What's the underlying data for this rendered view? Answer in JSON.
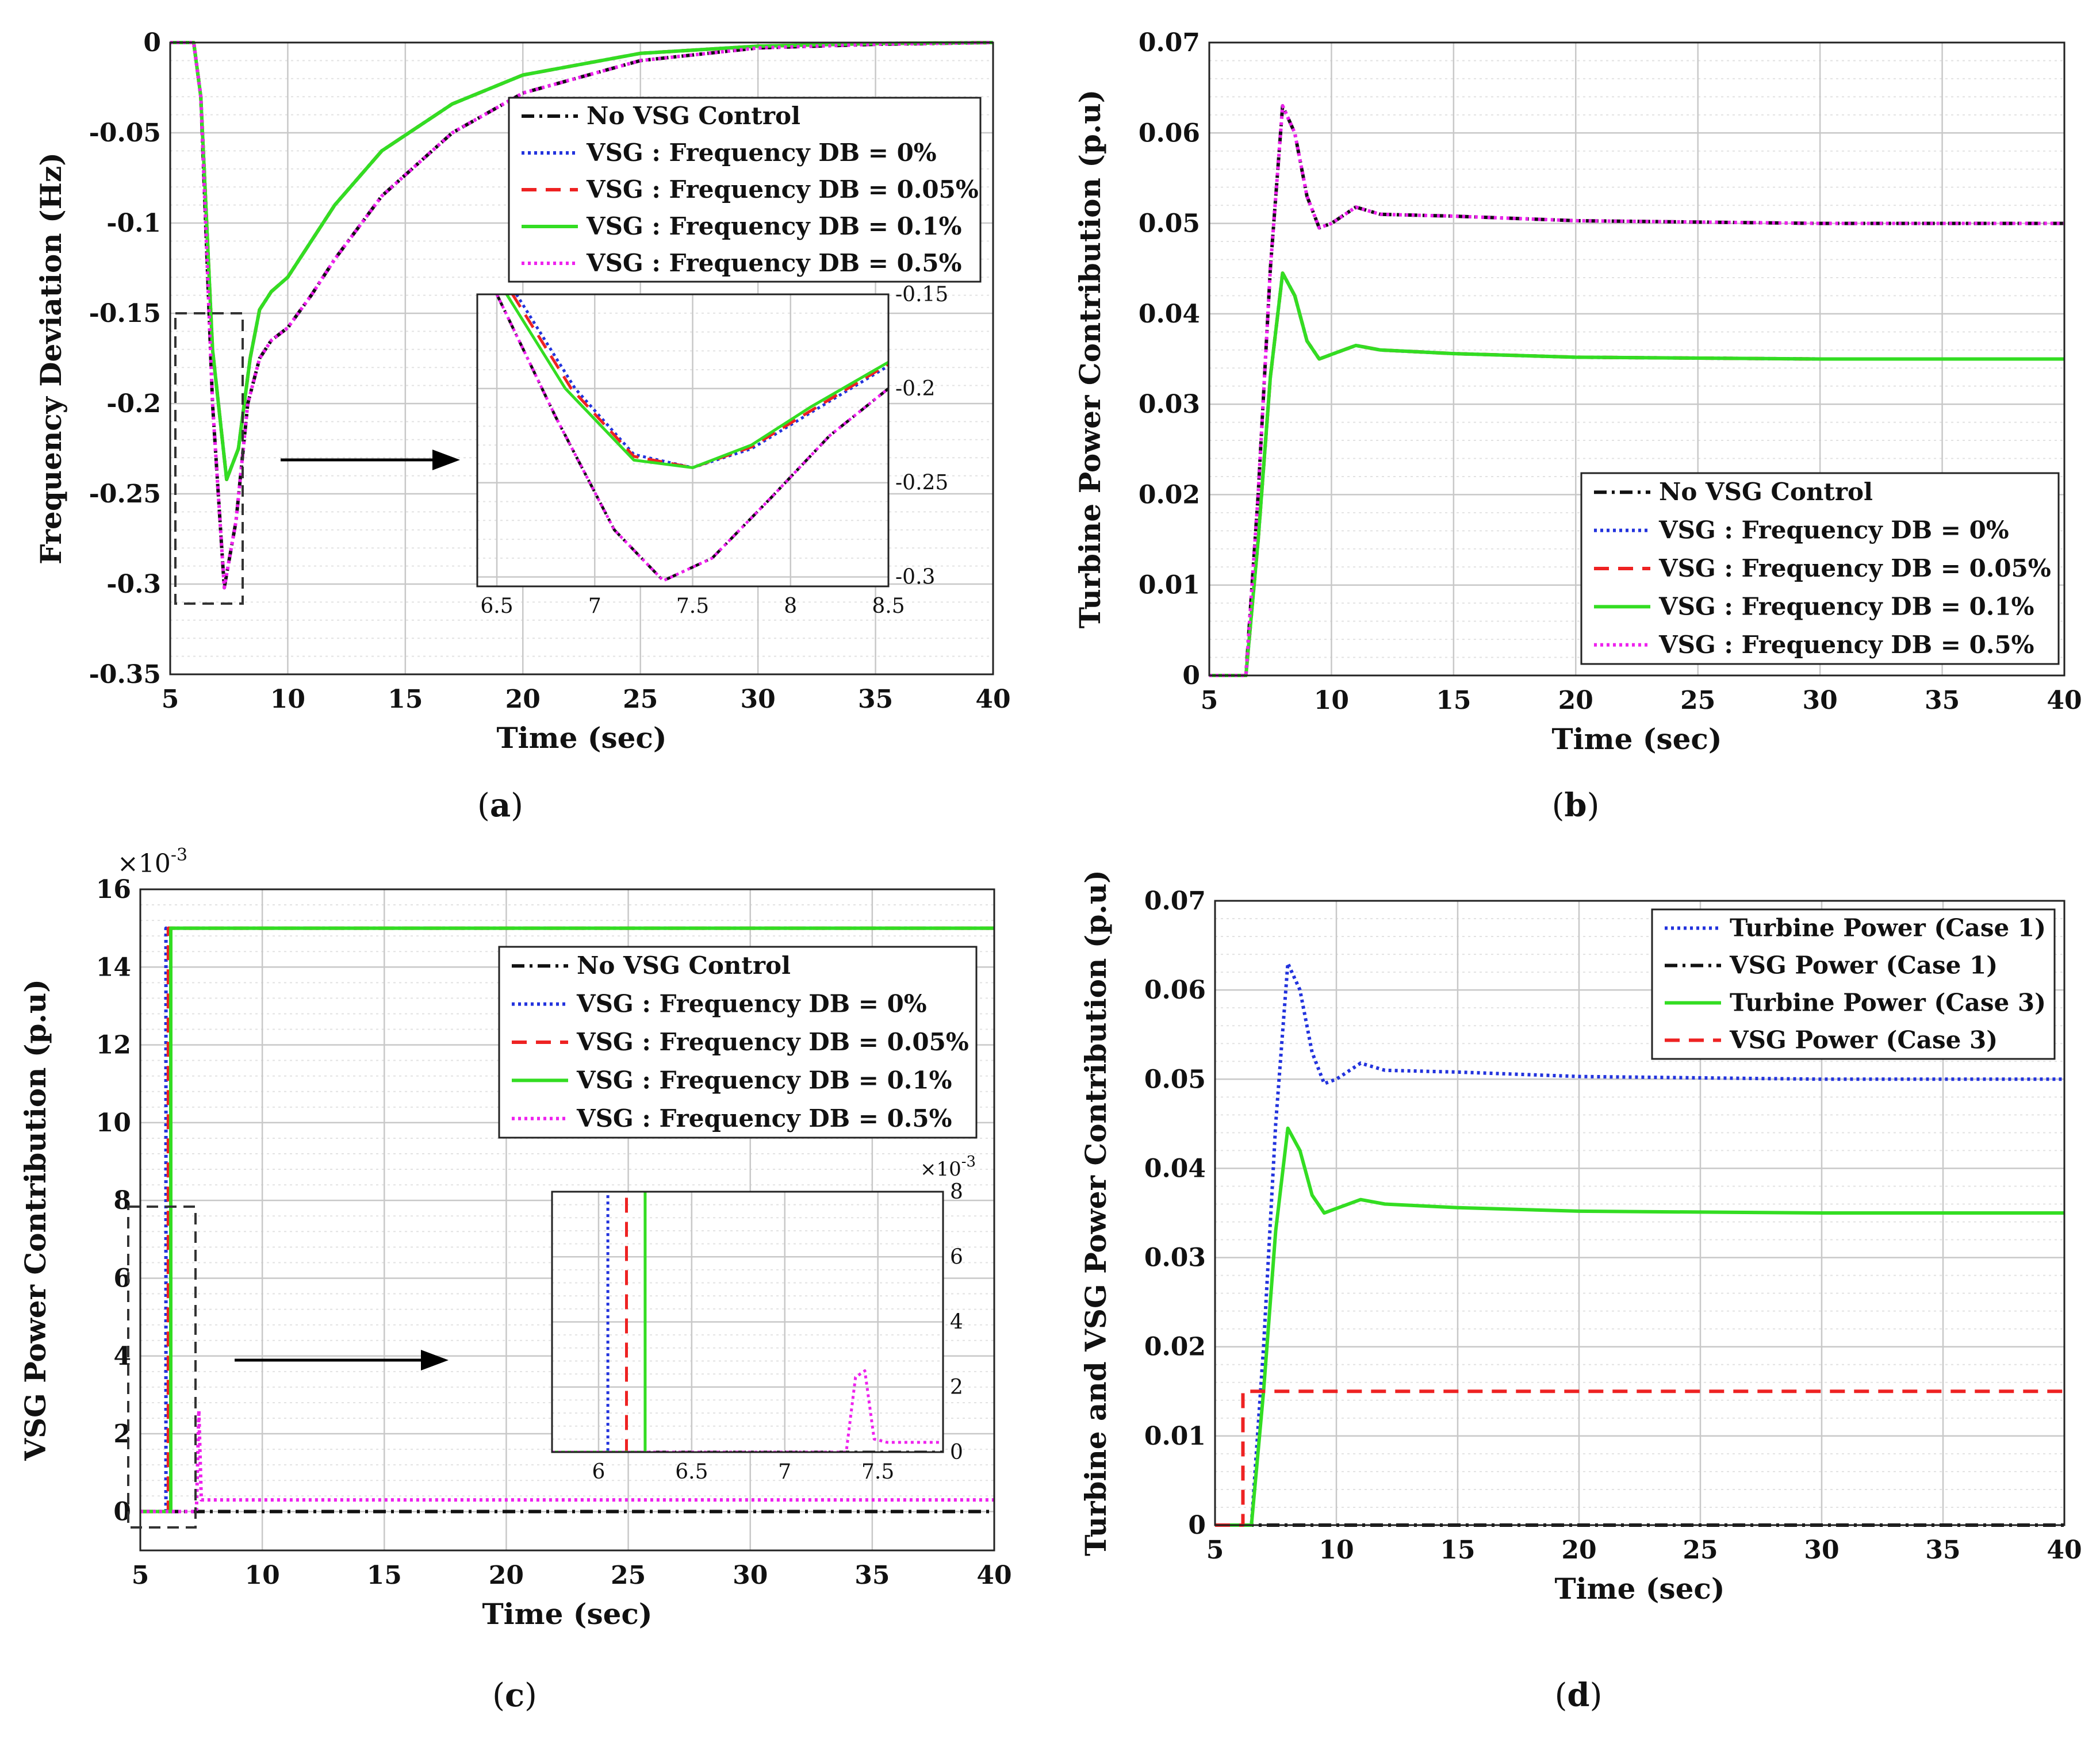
{
  "colors": {
    "no_vsg": "#111111",
    "db0": "#2233dd",
    "db005": "#ee2222",
    "db01": "#33dd22",
    "db05": "#ee22ee",
    "grid": "#c8c8c8",
    "minor_grid": "#e2e2e2"
  },
  "chart_data": [
    {
      "id": "a",
      "type": "line",
      "caption": {
        "open": "(",
        "letter": "a",
        "close": ")"
      },
      "xlabel": "Time (sec)",
      "ylabel": "Frequency Deviation (Hz)",
      "xlim": [
        5,
        40
      ],
      "ylim": [
        -0.35,
        0
      ],
      "xticks": [
        "5",
        "10",
        "15",
        "20",
        "25",
        "30",
        "35",
        "40"
      ],
      "yticks": [
        "0",
        "-0.05",
        "-0.1",
        "-0.15",
        "-0.2",
        "-0.25",
        "-0.3",
        "-0.35"
      ],
      "legend": [
        "No VSG Control",
        "VSG : Frequency DB =  0%",
        "VSG : Frequency DB =  0.05%",
        "VSG : Frequency DB =  0.1%",
        "VSG : Frequency DB =  0.5%"
      ],
      "series": [
        {
          "name": "No VSG Control",
          "style": "dashdot",
          "color": "#111111",
          "x": [
            5,
            6,
            6.3,
            6.8,
            7.3,
            7.8,
            8.3,
            8.8,
            9.3,
            10,
            11,
            12,
            14,
            17,
            20,
            25,
            30,
            35,
            40
          ],
          "y": [
            0,
            0,
            -0.03,
            -0.2,
            -0.302,
            -0.265,
            -0.2,
            -0.175,
            -0.165,
            -0.158,
            -0.14,
            -0.12,
            -0.085,
            -0.05,
            -0.028,
            -0.01,
            -0.003,
            -0.001,
            0
          ]
        },
        {
          "name": "VSG : Frequency DB =  0%",
          "style": "dotted",
          "color": "#2233dd",
          "x": [
            5,
            6,
            6.3,
            6.8,
            7.4,
            7.9,
            8.4,
            8.8,
            9.3,
            10,
            11,
            12,
            14,
            17,
            20,
            25,
            30,
            35,
            40
          ],
          "y": [
            0,
            0,
            -0.03,
            -0.17,
            -0.242,
            -0.225,
            -0.175,
            -0.148,
            -0.138,
            -0.13,
            -0.11,
            -0.09,
            -0.06,
            -0.034,
            -0.018,
            -0.006,
            -0.002,
            -0.0005,
            0
          ]
        },
        {
          "name": "VSG : Frequency DB =  0.05%",
          "style": "dashed",
          "color": "#ee2222",
          "x": [
            5,
            6,
            6.3,
            6.8,
            7.4,
            7.9,
            8.4,
            8.8,
            9.3,
            10,
            11,
            12,
            14,
            17,
            20,
            25,
            30,
            35,
            40
          ],
          "y": [
            0,
            0,
            -0.03,
            -0.17,
            -0.242,
            -0.225,
            -0.175,
            -0.148,
            -0.138,
            -0.13,
            -0.11,
            -0.09,
            -0.06,
            -0.034,
            -0.018,
            -0.006,
            -0.002,
            -0.0005,
            0
          ]
        },
        {
          "name": "VSG : Frequency DB =  0.1%",
          "style": "solid",
          "color": "#33dd22",
          "x": [
            5,
            6,
            6.3,
            6.8,
            7.4,
            7.9,
            8.4,
            8.8,
            9.3,
            10,
            11,
            12,
            14,
            17,
            20,
            25,
            30,
            35,
            40
          ],
          "y": [
            0,
            0,
            -0.03,
            -0.17,
            -0.242,
            -0.225,
            -0.175,
            -0.148,
            -0.138,
            -0.13,
            -0.11,
            -0.09,
            -0.06,
            -0.034,
            -0.018,
            -0.006,
            -0.002,
            -0.0005,
            0
          ]
        },
        {
          "name": "VSG : Frequency DB =  0.5%",
          "style": "dotted",
          "color": "#ee22ee",
          "x": [
            5,
            6,
            6.3,
            6.8,
            7.3,
            7.8,
            8.3,
            8.8,
            9.3,
            10,
            11,
            12,
            14,
            17,
            20,
            25,
            30,
            35,
            40
          ],
          "y": [
            0,
            0,
            -0.03,
            -0.2,
            -0.302,
            -0.265,
            -0.2,
            -0.175,
            -0.165,
            -0.158,
            -0.14,
            -0.12,
            -0.085,
            -0.05,
            -0.028,
            -0.01,
            -0.003,
            -0.001,
            0
          ]
        }
      ],
      "inset": {
        "xlim": [
          6.4,
          8.5
        ],
        "ylim": [
          -0.305,
          -0.15
        ],
        "xticks": [
          "6.5",
          "7",
          "7.5",
          "8",
          "8.5"
        ],
        "yticks": [
          "-0.15",
          "-0.2",
          "-0.25",
          "-0.3"
        ],
        "series": [
          {
            "name": "No VSG Control",
            "x": [
              6.5,
              6.8,
              7.1,
              7.35,
              7.6,
              7.9,
              8.2,
              8.5
            ],
            "y": [
              -0.15,
              -0.215,
              -0.275,
              -0.302,
              -0.29,
              -0.258,
              -0.225,
              -0.2
            ]
          },
          {
            "name": "VSG : Frequency DB =  0%",
            "x": [
              6.6,
              6.9,
              7.2,
              7.5,
              7.8,
              8.1,
              8.5
            ],
            "y": [
              -0.15,
              -0.2,
              -0.235,
              -0.242,
              -0.232,
              -0.213,
              -0.188
            ]
          },
          {
            "name": "VSG : Frequency DB =  0.05%",
            "x": [
              6.58,
              6.88,
              7.2,
              7.5,
              7.8,
              8.1,
              8.5
            ],
            "y": [
              -0.15,
              -0.2,
              -0.236,
              -0.242,
              -0.231,
              -0.212,
              -0.187
            ]
          },
          {
            "name": "VSG : Frequency DB =  0.1%",
            "x": [
              6.55,
              6.85,
              7.2,
              7.5,
              7.8,
              8.1,
              8.5
            ],
            "y": [
              -0.15,
              -0.2,
              -0.238,
              -0.242,
              -0.23,
              -0.21,
              -0.186
            ]
          },
          {
            "name": "VSG : Frequency DB =  0.5%",
            "x": [
              6.5,
              6.8,
              7.1,
              7.35,
              7.6,
              7.9,
              8.2,
              8.5
            ],
            "y": [
              -0.15,
              -0.215,
              -0.275,
              -0.302,
              -0.29,
              -0.258,
              -0.225,
              -0.2
            ]
          }
        ]
      }
    },
    {
      "id": "b",
      "type": "line",
      "caption": {
        "open": "(",
        "letter": "b",
        "close": ")"
      },
      "xlabel": "Time (sec)",
      "ylabel": "Turbine Power Contribution (p.u)",
      "xlim": [
        5,
        40
      ],
      "ylim": [
        0,
        0.07
      ],
      "xticks": [
        "5",
        "10",
        "15",
        "20",
        "25",
        "30",
        "35",
        "40"
      ],
      "yticks": [
        "0",
        "0.01",
        "0.02",
        "0.03",
        "0.04",
        "0.05",
        "0.06",
        "0.07"
      ],
      "legend": [
        "No VSG Control",
        "VSG : Frequency DB =  0%",
        "VSG : Frequency DB =  0.05%",
        "VSG : Frequency DB =  0.1%",
        "VSG : Frequency DB =  0.5%"
      ],
      "series": [
        {
          "name": "No VSG Control",
          "style": "dashdot",
          "color": "#111111",
          "x": [
            5,
            6.5,
            7,
            7.5,
            8,
            8.5,
            9,
            9.5,
            10,
            11,
            12,
            15,
            20,
            30,
            40
          ],
          "y": [
            0,
            0,
            0.02,
            0.045,
            0.063,
            0.06,
            0.053,
            0.0495,
            0.05,
            0.0518,
            0.051,
            0.0508,
            0.0503,
            0.05,
            0.05
          ]
        },
        {
          "name": "VSG : Frequency DB =  0%",
          "style": "dotted",
          "color": "#2233dd",
          "x": [
            5,
            6.5,
            7,
            7.5,
            8,
            8.5,
            9,
            9.5,
            10,
            11,
            12,
            15,
            20,
            30,
            40
          ],
          "y": [
            0,
            0,
            0.015,
            0.033,
            0.0445,
            0.042,
            0.037,
            0.035,
            0.0355,
            0.0365,
            0.036,
            0.0356,
            0.0352,
            0.035,
            0.035
          ]
        },
        {
          "name": "VSG : Frequency DB =  0.05%",
          "style": "dashed",
          "color": "#ee2222",
          "x": [
            5,
            6.5,
            7,
            7.5,
            8,
            8.5,
            9,
            9.5,
            10,
            11,
            12,
            15,
            20,
            30,
            40
          ],
          "y": [
            0,
            0,
            0.015,
            0.033,
            0.0445,
            0.042,
            0.037,
            0.035,
            0.0355,
            0.0365,
            0.036,
            0.0356,
            0.0352,
            0.035,
            0.035
          ]
        },
        {
          "name": "VSG : Frequency DB =  0.1%",
          "style": "solid",
          "color": "#33dd22",
          "x": [
            5,
            6.5,
            7,
            7.5,
            8,
            8.5,
            9,
            9.5,
            10,
            11,
            12,
            15,
            20,
            30,
            40
          ],
          "y": [
            0,
            0,
            0.015,
            0.033,
            0.0445,
            0.042,
            0.037,
            0.035,
            0.0355,
            0.0365,
            0.036,
            0.0356,
            0.0352,
            0.035,
            0.035
          ]
        },
        {
          "name": "VSG : Frequency DB =  0.5%",
          "style": "dotted",
          "color": "#ee22ee",
          "x": [
            5,
            6.5,
            7,
            7.5,
            8,
            8.5,
            9,
            9.5,
            10,
            11,
            12,
            15,
            20,
            30,
            40
          ],
          "y": [
            0,
            0,
            0.02,
            0.045,
            0.063,
            0.06,
            0.053,
            0.0495,
            0.05,
            0.0518,
            0.051,
            0.0508,
            0.0503,
            0.05,
            0.05
          ]
        }
      ]
    },
    {
      "id": "c",
      "type": "line",
      "caption": {
        "open": "(",
        "letter": "c",
        "close": ")"
      },
      "xlabel": "Time (sec)",
      "ylabel": "VSG Power Contribution (p.u)",
      "exponent": {
        "base": "×10",
        "power": "-3"
      },
      "xlim": [
        5,
        40
      ],
      "ylim": [
        -1,
        16
      ],
      "xticks": [
        "5",
        "10",
        "15",
        "20",
        "25",
        "30",
        "35",
        "40"
      ],
      "yticks": [
        "0",
        "2",
        "4",
        "6",
        "8",
        "10",
        "12",
        "14",
        "16"
      ],
      "legend": [
        "No VSG Control",
        "VSG : Frequency DB =  0%",
        "VSG : Frequency DB =  0.05%",
        "VSG : Frequency DB =  0.1%",
        "VSG : Frequency DB =  0.5%"
      ],
      "series": [
        {
          "name": "No VSG Control",
          "style": "dashdot",
          "color": "#111111",
          "x": [
            5,
            40
          ],
          "y": [
            0,
            0
          ]
        },
        {
          "name": "VSG : Frequency DB =  0%",
          "style": "dotted",
          "color": "#2233dd",
          "x": [
            5,
            6.05,
            6.05,
            40
          ],
          "y": [
            0,
            0,
            15,
            15
          ]
        },
        {
          "name": "VSG : Frequency DB =  0.05%",
          "style": "dashed",
          "color": "#ee2222",
          "x": [
            5,
            6.15,
            6.15,
            40
          ],
          "y": [
            0,
            0,
            15,
            15
          ]
        },
        {
          "name": "VSG : Frequency DB =  0.1%",
          "style": "solid",
          "color": "#33dd22",
          "x": [
            5,
            6.25,
            6.25,
            40
          ],
          "y": [
            0,
            0,
            15,
            15
          ]
        },
        {
          "name": "VSG : Frequency DB =  0.5%",
          "style": "dotted",
          "color": "#ee22ee",
          "x": [
            5,
            7.3,
            7.4,
            7.5,
            7.6,
            40
          ],
          "y": [
            0,
            0,
            2.6,
            0.3,
            0.3,
            0.3
          ]
        }
      ],
      "inset": {
        "xlim": [
          5.75,
          7.85
        ],
        "ylim": [
          0,
          8
        ],
        "xticks": [
          "6",
          "6.5",
          "7",
          "7.5"
        ],
        "yticks": [
          "0",
          "2",
          "4",
          "6",
          "8"
        ],
        "exponent": {
          "base": "×10",
          "power": "-3"
        },
        "series": [
          {
            "name": "No VSG Control",
            "x": [
              5.75,
              7.85
            ],
            "y": [
              0,
              0
            ]
          },
          {
            "name": "VSG : Frequency DB =  0%",
            "x": [
              5.75,
              6.05,
              6.05
            ],
            "y": [
              0,
              0,
              8
            ]
          },
          {
            "name": "VSG : Frequency DB =  0.05%",
            "x": [
              5.75,
              6.15,
              6.15
            ],
            "y": [
              0,
              0,
              8
            ]
          },
          {
            "name": "VSG : Frequency DB =  0.1%",
            "x": [
              5.75,
              6.25,
              6.25
            ],
            "y": [
              0,
              0,
              8
            ]
          },
          {
            "name": "VSG : Frequency DB =  0.5%",
            "x": [
              5.75,
              7.33,
              7.38,
              7.43,
              7.48,
              7.55,
              7.85
            ],
            "y": [
              0,
              0,
              2.3,
              2.5,
              0.4,
              0.3,
              0.3
            ]
          }
        ]
      }
    },
    {
      "id": "d",
      "type": "line",
      "caption": {
        "open": "(",
        "letter": "d",
        "close": ")"
      },
      "xlabel": "Time (sec)",
      "ylabel": "Turbine and VSG Power Contribution (p.u)",
      "xlim": [
        5,
        40
      ],
      "ylim": [
        0,
        0.07
      ],
      "xticks": [
        "5",
        "10",
        "15",
        "20",
        "25",
        "30",
        "35",
        "40"
      ],
      "yticks": [
        "0",
        "0.01",
        "0.02",
        "0.03",
        "0.04",
        "0.05",
        "0.06",
        "0.07"
      ],
      "legend": [
        "Turbine Power (Case 1)",
        "VSG Power (Case 1)",
        "Turbine Power (Case 3)",
        "VSG Power (Case 3)"
      ],
      "series": [
        {
          "name": "Turbine Power (Case 1)",
          "style": "dotted",
          "color": "#2233dd",
          "x": [
            5,
            6.5,
            7,
            7.5,
            8,
            8.5,
            9,
            9.5,
            10,
            11,
            12,
            15,
            20,
            30,
            40
          ],
          "y": [
            0,
            0,
            0.02,
            0.045,
            0.063,
            0.06,
            0.053,
            0.0495,
            0.05,
            0.0518,
            0.051,
            0.0508,
            0.0503,
            0.05,
            0.05
          ]
        },
        {
          "name": "VSG Power (Case 1)",
          "style": "dashdot",
          "color": "#111111",
          "x": [
            5,
            40
          ],
          "y": [
            0,
            0
          ]
        },
        {
          "name": "Turbine Power (Case 3)",
          "style": "solid",
          "color": "#33dd22",
          "x": [
            5,
            6.5,
            7,
            7.5,
            8,
            8.5,
            9,
            9.5,
            10,
            11,
            12,
            15,
            20,
            30,
            40
          ],
          "y": [
            0,
            0,
            0.015,
            0.033,
            0.0445,
            0.042,
            0.037,
            0.035,
            0.0355,
            0.0365,
            0.036,
            0.0356,
            0.0352,
            0.035,
            0.035
          ]
        },
        {
          "name": "VSG Power (Case 3)",
          "style": "dashed",
          "color": "#ee2222",
          "x": [
            5,
            6.15,
            6.15,
            40
          ],
          "y": [
            0,
            0,
            0.015,
            0.015
          ]
        }
      ]
    }
  ]
}
